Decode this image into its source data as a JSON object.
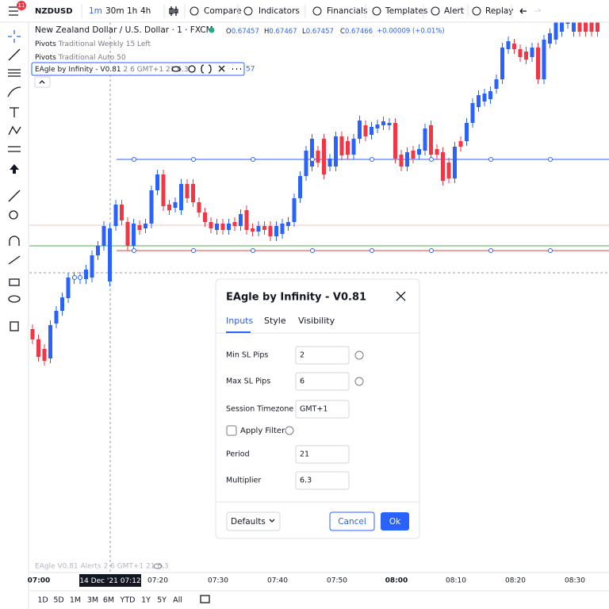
{
  "toolbar": {
    "badge": "11",
    "symbol": "NZDUSD",
    "intervals": [
      "1m",
      "30m",
      "1h",
      "4h"
    ],
    "buttons": [
      "Compare",
      "Indicators",
      "Financials",
      "Templates",
      "Alert",
      "Replay"
    ]
  },
  "legend": {
    "title": "New Zealand Dollar / U.S. Dollar · 1 · FXCM",
    "ohlc": [
      [
        "O",
        "0.67457"
      ],
      [
        "H",
        "0.67467"
      ],
      [
        "L",
        "0.67457"
      ],
      [
        "C",
        "0.67466"
      ]
    ],
    "change": "+0.00009 (+0.01%)",
    "indicators": [
      [
        "Pivots",
        "Traditional Weekly 15 Left"
      ],
      [
        "Pivots",
        "Traditional Auto 50"
      ]
    ],
    "active_indicator": {
      "name": "EAgle by Infinity - V0.81",
      "args": "2 6 GMT+1 21 6.3",
      "tail": "57"
    }
  },
  "dialog": {
    "title": "EAgle by Infinity - V0.81",
    "tabs": [
      "Inputs",
      "Style",
      "Visibility"
    ],
    "fields": [
      {
        "label": "Min SL Pips",
        "value": "2"
      },
      {
        "label": "Max SL Pips",
        "value": "6"
      },
      {
        "label": "Session Timezone",
        "value": "GMT+1"
      },
      {
        "label": "Apply Filter"
      },
      {
        "label": "Period",
        "value": "21"
      },
      {
        "label": "Multiplier",
        "value": "6.3"
      }
    ],
    "defaults": "Defaults",
    "cancel": "Cancel",
    "ok": "Ok"
  },
  "status": "EAgle V0.81 Alerts 2 6 GMT+1 21 6.3",
  "time_axis": {
    "labels": [
      "07:00",
      "07:20",
      "07:30",
      "07:40",
      "07:50",
      "08:00",
      "08:10",
      "08:20",
      "08:30"
    ],
    "crosshair": [
      "14 Dec '21",
      "07:12"
    ]
  },
  "ranges": [
    "1D",
    "5D",
    "1M",
    "3M",
    "6M",
    "YTD",
    "1Y",
    "5Y",
    "All"
  ]
}
